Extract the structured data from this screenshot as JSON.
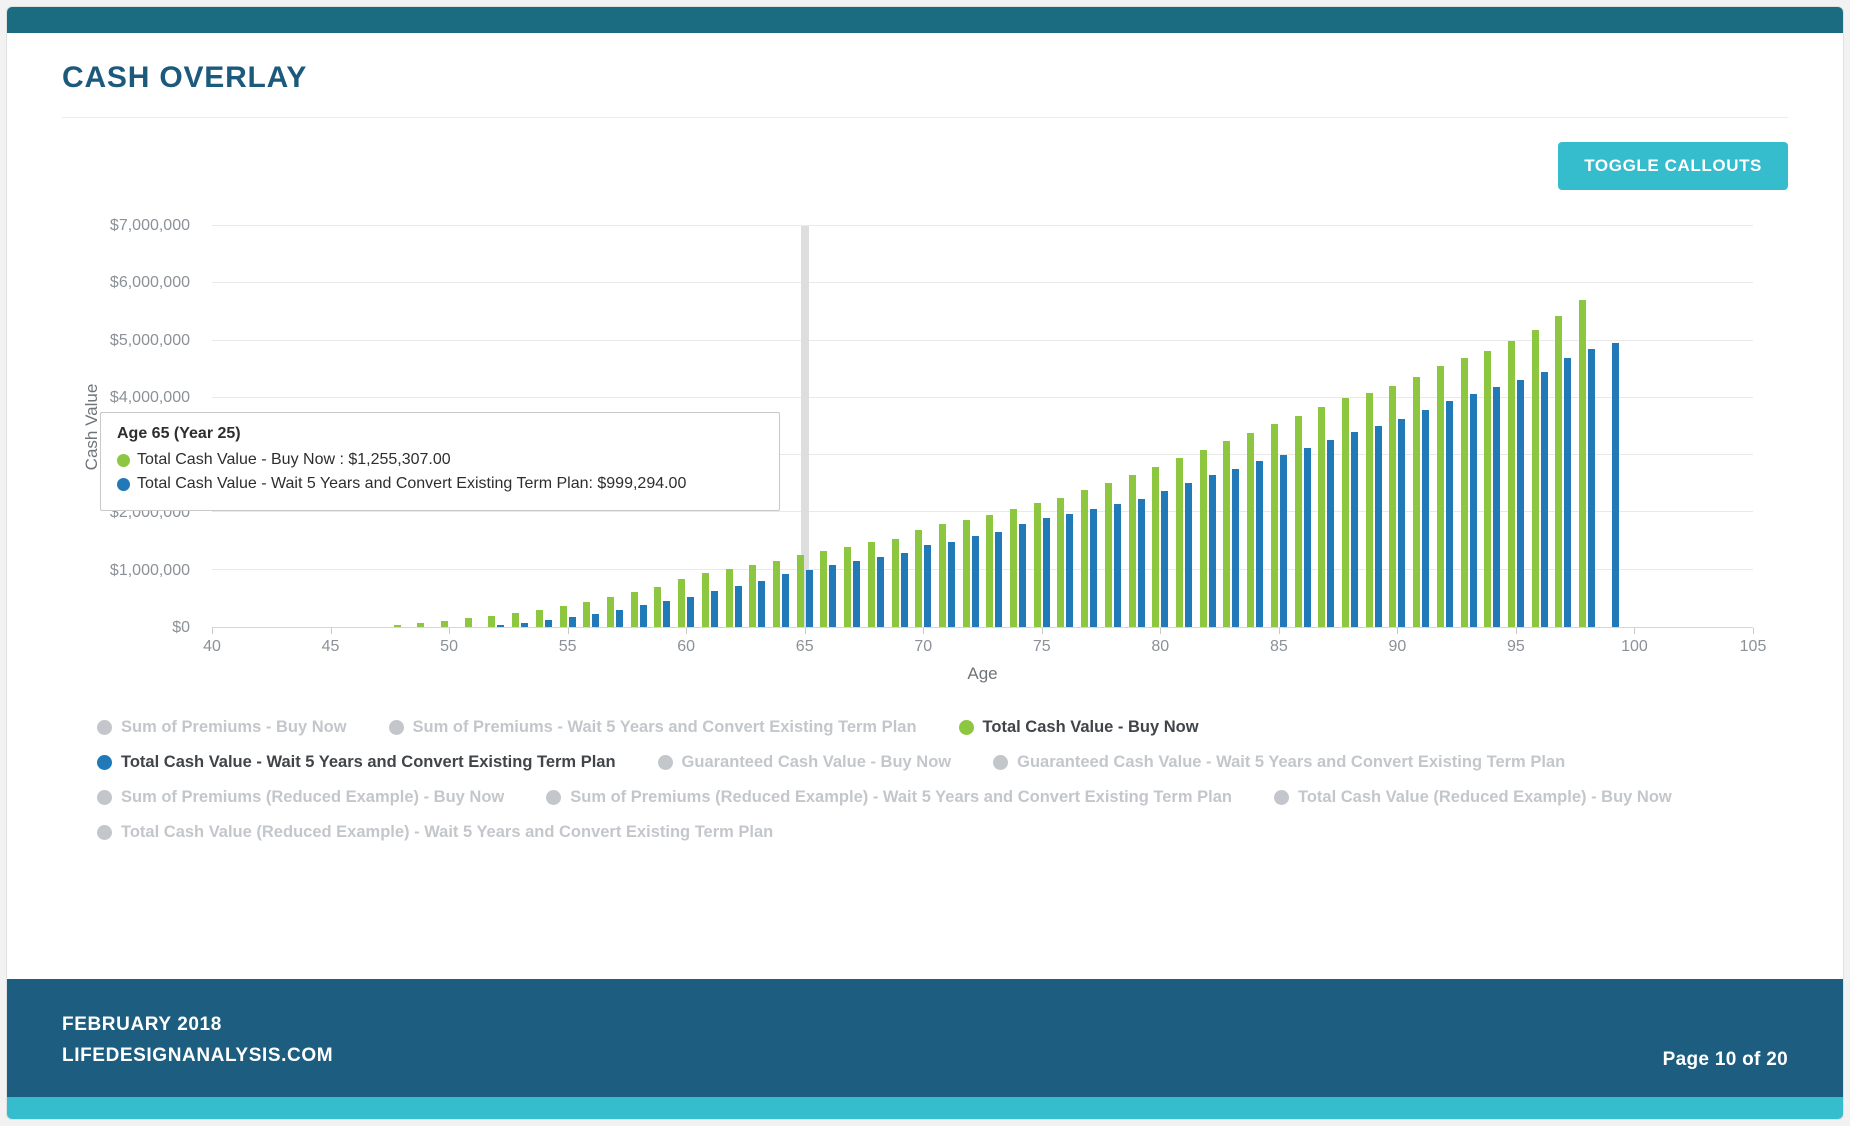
{
  "page": {
    "title": "CASH OVERLAY",
    "toggle_button": "TOGGLE CALLOUTS"
  },
  "colors": {
    "header_bar": "#1b6c80",
    "footer_bar": "#1d5e80",
    "accent_cyan": "#35bccd",
    "heading": "#1b5a7c",
    "green_series": "#8dc63f",
    "blue_series": "#2279b8",
    "inactive_gray": "#c3c7cb"
  },
  "tooltip": {
    "title": "Age 65 (Year 25)",
    "buy_now": "Total Cash Value - Buy Now : $1,255,307.00",
    "wait5": "Total Cash Value - Wait 5 Years and Convert Existing Term Plan: $999,294.00"
  },
  "chart_data": {
    "type": "bar",
    "title": "",
    "xlabel": "Age",
    "ylabel": "Cash Value",
    "xlim": [
      40,
      105
    ],
    "ylim": [
      0,
      7000000
    ],
    "x_ticks": [
      40,
      45,
      50,
      55,
      60,
      65,
      70,
      75,
      80,
      85,
      90,
      95,
      100,
      105
    ],
    "y_ticks": [
      0,
      1000000,
      2000000,
      3000000,
      4000000,
      5000000,
      6000000,
      7000000
    ],
    "y_tick_labels": [
      "$0",
      "$1,000,000",
      "$2,000,000",
      "$3,000,000",
      "$4,000,000",
      "$5,000,000",
      "$6,000,000",
      "$7,000,000"
    ],
    "grid": true,
    "legend_position": "bottom",
    "marker_age": 65,
    "categories": [
      48,
      49,
      50,
      51,
      52,
      53,
      54,
      55,
      56,
      57,
      58,
      59,
      60,
      61,
      62,
      63,
      64,
      65,
      66,
      67,
      68,
      69,
      70,
      71,
      72,
      73,
      74,
      75,
      76,
      77,
      78,
      79,
      80,
      81,
      82,
      83,
      84,
      85,
      86,
      87,
      88,
      89,
      90,
      91,
      92,
      93,
      94,
      95,
      96,
      97,
      98,
      99
    ],
    "series": [
      {
        "name": "Total Cash Value - Buy Now",
        "color": "#8dc63f",
        "values": [
          30000,
          65000,
          110000,
          150000,
          195000,
          240000,
          290000,
          360000,
          430000,
          530000,
          610000,
          700000,
          840000,
          940000,
          1020000,
          1090000,
          1160000,
          1255307,
          1330000,
          1400000,
          1480000,
          1545000,
          1690000,
          1800000,
          1860000,
          1950000,
          2060000,
          2160000,
          2260000,
          2400000,
          2520000,
          2660000,
          2800000,
          2950000,
          3090000,
          3240000,
          3390000,
          3540000,
          3690000,
          3840000,
          3990000,
          4090000,
          4210000,
          4360000,
          4550000,
          4700000,
          4820000,
          5000000,
          5180000,
          5430000,
          5700000,
          null
        ]
      },
      {
        "name": "Total Cash Value - Wait 5 Years and Convert Existing Term Plan",
        "color": "#2279b8",
        "values": [
          null,
          null,
          null,
          null,
          30000,
          70000,
          120000,
          170000,
          230000,
          300000,
          380000,
          450000,
          520000,
          630000,
          720000,
          810000,
          930000,
          999294,
          1090000,
          1150000,
          1230000,
          1300000,
          1430000,
          1490000,
          1590000,
          1660000,
          1790000,
          1900000,
          1980000,
          2060000,
          2150000,
          2240000,
          2380000,
          2520000,
          2660000,
          2760000,
          2890000,
          3010000,
          3130000,
          3260000,
          3400000,
          3510000,
          3630000,
          3790000,
          3950000,
          4060000,
          4190000,
          4310000,
          4460000,
          4700000,
          4850000,
          4950000
        ]
      }
    ]
  },
  "legend": {
    "items": [
      {
        "label": "Sum of Premiums - Buy Now",
        "active": false
      },
      {
        "label": "Sum of Premiums - Wait 5 Years and Convert Existing Term Plan",
        "active": false
      },
      {
        "label": "Total Cash Value - Buy Now",
        "active": true,
        "color": "#8dc63f"
      },
      {
        "label": "Total Cash Value - Wait 5 Years and Convert Existing Term Plan",
        "active": true,
        "color": "#2279b8"
      },
      {
        "label": "Guaranteed Cash Value - Buy Now",
        "active": false
      },
      {
        "label": "Guaranteed Cash Value - Wait 5 Years and Convert Existing Term Plan",
        "active": false
      },
      {
        "label": "Sum of Premiums (Reduced Example) - Buy Now",
        "active": false
      },
      {
        "label": "Sum of Premiums (Reduced Example) - Wait 5 Years and Convert Existing Term Plan",
        "active": false
      },
      {
        "label": "Total Cash Value (Reduced Example) - Buy Now",
        "active": false
      },
      {
        "label": "Total Cash Value (Reduced Example) - Wait 5 Years and Convert Existing Term Plan",
        "active": false
      }
    ]
  },
  "footer": {
    "date": "FEBRUARY 2018",
    "site": "LIFEDESIGNANALYSIS.COM",
    "page_number": "Page 10 of 20"
  }
}
